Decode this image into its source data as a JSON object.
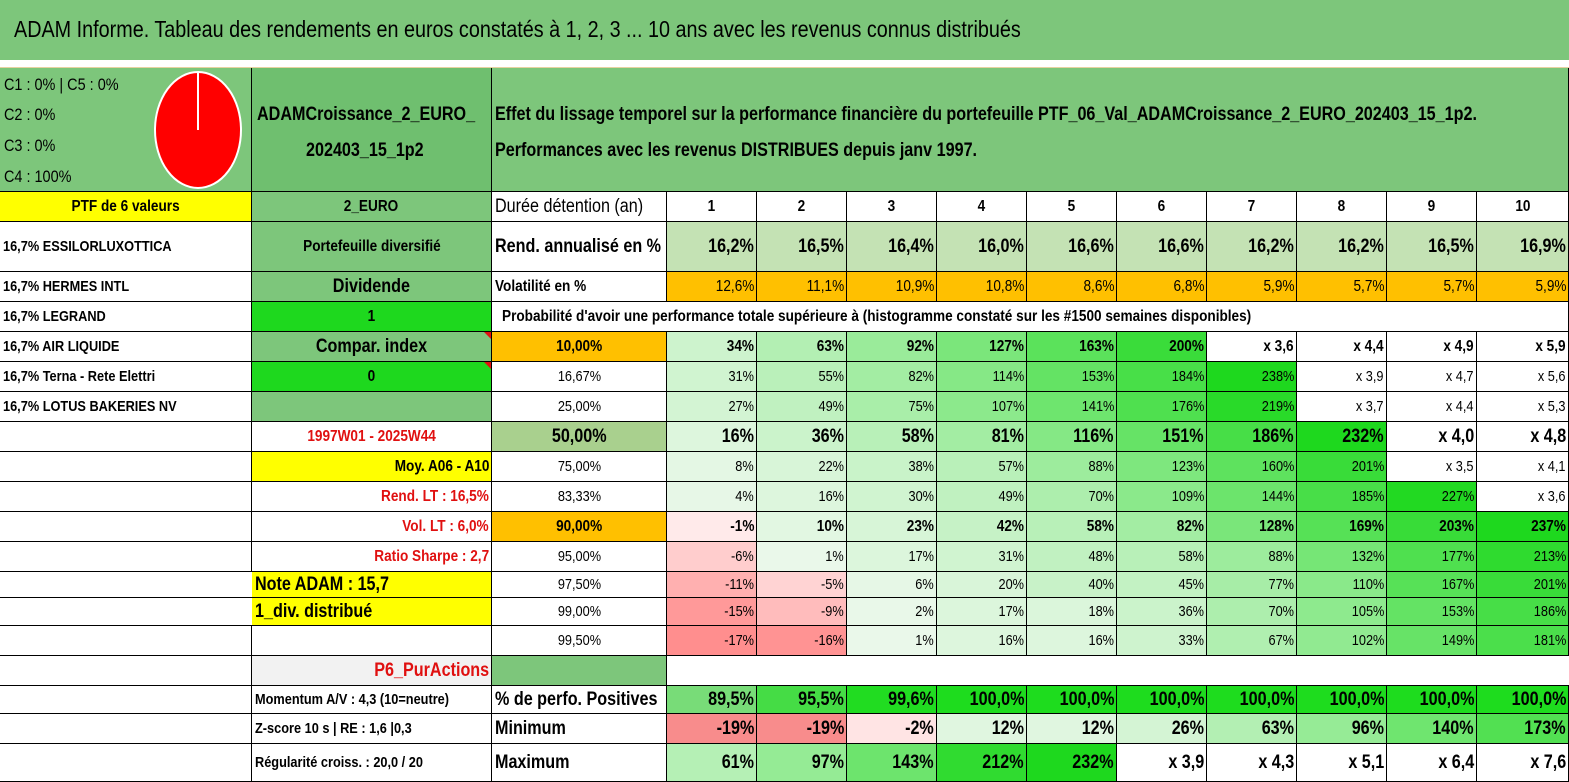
{
  "title": "ADAM Informe. Tableau des rendements en euros constatés à 1, 2, 3 ... 10 ans avec les revenus connus distribués",
  "legend": [
    "C1 : 0% | C5 : 0%",
    "C2 : 0%",
    "C3 : 0%",
    "C4 : 100%"
  ],
  "pie": {
    "label": "C4",
    "value": 100,
    "color": "#ff0000"
  },
  "portfolio_name": [
    "ADAMCroissance_2_EURO_",
    "202403_15_1p2"
  ],
  "description": [
    "Effet du lissage temporel sur la performance financière du portefeuille PTF_06_Val_ADAMCroissance_2_EURO_202403_15_1p2.",
    "Performances avec les revenus DISTRIBUES depuis janv 1997."
  ],
  "left_labels": [
    "PTF de 6 valeurs",
    "16,7% ESSILORLUXOTTICA",
    "16,7% HERMES INTL",
    "16,7% LEGRAND",
    "16,7% AIR LIQUIDE",
    "16,7% Terna - Rete Elettri",
    "16,7% LOTUS BAKERIES NV"
  ],
  "mid_labels": {
    "currency": "2_EURO",
    "diversified": "Portefeuille diversifié",
    "dividend": "Dividende",
    "dividend_value": "1",
    "compar": "Compar. index",
    "compar_value": "0",
    "period": "1997W01 - 2025W44",
    "moy": "Moy. A06 - A10",
    "rend_lt": "Rend. LT : 16,5%",
    "vol_lt": "Vol. LT : 6,0%",
    "sharpe": "Ratio Sharpe : 2,7",
    "note": "Note ADAM : 15,7",
    "div_distrib": "1_div. distribué",
    "purActions": "P6_PurActions",
    "momentum": "Momentum A/V : 4,3 (10=neutre)",
    "zscore": "Z-score 10 s | RE : 1,6 |0,3",
    "regularite": "Régularité croiss. : 20,0 / 20"
  },
  "header_row": {
    "label": "Durée détention (an)",
    "years": [
      "1",
      "2",
      "3",
      "4",
      "5",
      "6",
      "7",
      "8",
      "9",
      "10"
    ]
  },
  "rend": {
    "label": "Rend. annualisé en %",
    "values": [
      "16,2%",
      "16,5%",
      "16,4%",
      "16,0%",
      "16,6%",
      "16,6%",
      "16,2%",
      "16,2%",
      "16,5%",
      "16,9%"
    ]
  },
  "vol": {
    "label": "Volatilité en %",
    "values": [
      "12,6%",
      "11,1%",
      "10,9%",
      "10,8%",
      "8,6%",
      "6,8%",
      "5,9%",
      "5,7%",
      "5,7%",
      "5,9%"
    ]
  },
  "prob_header": "Probabilité d'avoir une performance totale supérieure à (histogramme constaté sur les #1500 semaines disponibles)",
  "prob_rows": [
    {
      "label": "10,00%",
      "values": [
        "34%",
        "63%",
        "92%",
        "127%",
        "163%",
        "200%",
        "x 3,6",
        "x 4,4",
        "x 4,9",
        "x 5,9"
      ]
    },
    {
      "label": "16,67%",
      "values": [
        "31%",
        "55%",
        "82%",
        "114%",
        "153%",
        "184%",
        "238%",
        "x 3,9",
        "x 4,7",
        "x 5,6"
      ]
    },
    {
      "label": "25,00%",
      "values": [
        "27%",
        "49%",
        "75%",
        "107%",
        "141%",
        "176%",
        "219%",
        "x 3,7",
        "x 4,4",
        "x 5,3"
      ]
    },
    {
      "label": "50,00%",
      "values": [
        "16%",
        "36%",
        "58%",
        "81%",
        "116%",
        "151%",
        "186%",
        "232%",
        "x 4,0",
        "x 4,8"
      ]
    },
    {
      "label": "75,00%",
      "values": [
        "8%",
        "22%",
        "38%",
        "57%",
        "88%",
        "123%",
        "160%",
        "201%",
        "x 3,5",
        "x 4,1"
      ]
    },
    {
      "label": "83,33%",
      "values": [
        "4%",
        "16%",
        "30%",
        "49%",
        "70%",
        "109%",
        "144%",
        "185%",
        "227%",
        "x 3,6"
      ]
    },
    {
      "label": "90,00%",
      "values": [
        "-1%",
        "10%",
        "23%",
        "42%",
        "58%",
        "82%",
        "128%",
        "169%",
        "203%",
        "237%"
      ]
    },
    {
      "label": "95,00%",
      "values": [
        "-6%",
        "1%",
        "17%",
        "31%",
        "48%",
        "58%",
        "88%",
        "132%",
        "177%",
        "213%"
      ]
    },
    {
      "label": "97,50%",
      "values": [
        "-11%",
        "-5%",
        "6%",
        "20%",
        "40%",
        "45%",
        "77%",
        "110%",
        "167%",
        "201%"
      ]
    },
    {
      "label": "99,00%",
      "values": [
        "-15%",
        "-9%",
        "2%",
        "17%",
        "18%",
        "36%",
        "70%",
        "105%",
        "153%",
        "186%"
      ]
    },
    {
      "label": "99,50%",
      "values": [
        "-17%",
        "-16%",
        "1%",
        "16%",
        "16%",
        "33%",
        "67%",
        "102%",
        "149%",
        "181%"
      ]
    }
  ],
  "stats_rows": [
    {
      "label": "% de perfo. Positives",
      "values": [
        "89,5%",
        "95,5%",
        "99,6%",
        "100,0%",
        "100,0%",
        "100,0%",
        "100,0%",
        "100,0%",
        "100,0%",
        "100,0%"
      ]
    },
    {
      "label": "Minimum",
      "values": [
        "-19%",
        "-19%",
        "-2%",
        "12%",
        "12%",
        "26%",
        "63%",
        "96%",
        "140%",
        "173%"
      ]
    },
    {
      "label": "Maximum",
      "values": [
        "61%",
        "97%",
        "143%",
        "212%",
        "232%",
        "x 3,9",
        "x 4,3",
        "x 5,1",
        "x 6,4",
        "x 7,6"
      ]
    }
  ],
  "colors": {
    "header_green": "#7dc67b",
    "yellow": "#ffff00",
    "orange": "#ffc000",
    "red_text": "#e01010",
    "bright_green": "#1ed81e"
  }
}
